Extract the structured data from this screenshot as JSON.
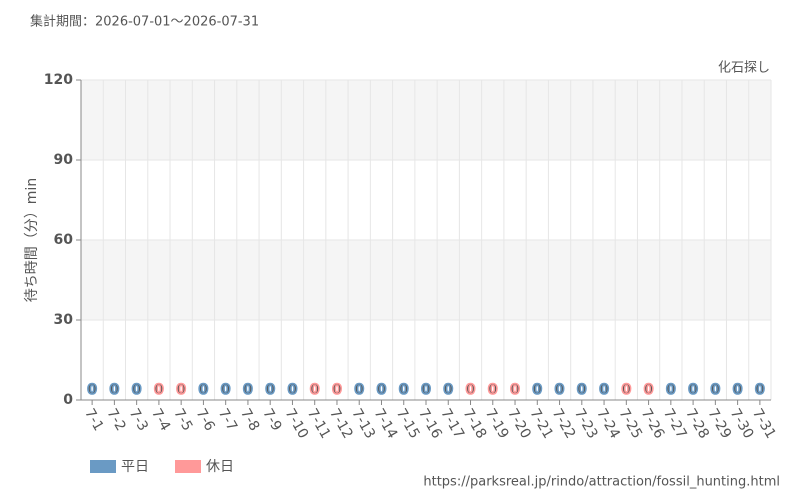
{
  "chart_data": {
    "type": "bar",
    "subtitle": "集計期間：2026-07-01～2026-07-31",
    "title": "化石探し",
    "y_label": "待ち時間（分）min",
    "source": "https://parksreal.jp/rindo/attraction/fossil_hunting.html",
    "categories": [
      "7-1",
      "7-2",
      "7-3",
      "7-4",
      "7-5",
      "7-6",
      "7-7",
      "7-8",
      "7-9",
      "7-10",
      "7-11",
      "7-12",
      "7-13",
      "7-14",
      "7-15",
      "7-16",
      "7-17",
      "7-18",
      "7-19",
      "7-20",
      "7-21",
      "7-22",
      "7-23",
      "7-24",
      "7-25",
      "7-26",
      "7-27",
      "7-28",
      "7-29",
      "7-30",
      "7-31"
    ],
    "series": [
      {
        "name": "平日",
        "color": "#6a9ac4",
        "values": [
          0,
          0,
          0,
          null,
          null,
          0,
          0,
          0,
          0,
          0,
          null,
          null,
          0,
          0,
          0,
          0,
          0,
          null,
          null,
          null,
          0,
          0,
          0,
          0,
          null,
          null,
          0,
          0,
          0,
          0,
          0
        ]
      },
      {
        "name": "休日",
        "color": "#ff9999",
        "values": [
          null,
          null,
          null,
          0,
          0,
          null,
          null,
          null,
          null,
          null,
          0,
          0,
          null,
          null,
          null,
          null,
          null,
          0,
          0,
          0,
          null,
          null,
          null,
          null,
          0,
          0,
          null,
          null,
          null,
          null,
          null
        ]
      }
    ],
    "ylim": [
      0,
      120
    ],
    "yticks": [
      0,
      30,
      60,
      90,
      120
    ],
    "grid": true
  }
}
